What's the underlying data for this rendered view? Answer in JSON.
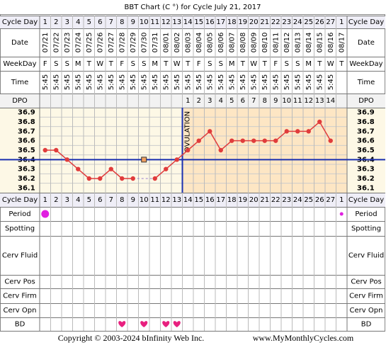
{
  "title": "BBT Chart (C °) for Cycle July 21, 2017",
  "row_labels": {
    "cycle_day": "Cycle Day",
    "date": "Date",
    "weekday": "WeekDay",
    "time": "Time",
    "dpo": "DPO",
    "period": "Period",
    "spotting": "Spotting",
    "cerv_fluid": "Cerv Fluid",
    "cerv_pos": "Cerv Pos",
    "cerv_firm": "Cerv Firm",
    "cerv_opn": "Cerv Opn",
    "bd": "BD"
  },
  "dates": [
    "07/21",
    "07/22",
    "07/23",
    "07/24",
    "07/25",
    "07/26",
    "07/27",
    "07/28",
    "07/29",
    "07/30",
    "07/31",
    "08/01",
    "08/02",
    "08/03",
    "08/04",
    "08/05",
    "08/06",
    "08/07",
    "08/08",
    "08/09",
    "08/10",
    "08/11",
    "08/12",
    "08/13",
    "08/14",
    "08/15",
    "08/16",
    "08/17"
  ],
  "weekdays": [
    "F",
    "S",
    "S",
    "M",
    "T",
    "W",
    "T",
    "F",
    "S",
    "S",
    "M",
    "T",
    "W",
    "T",
    "F",
    "S",
    "S",
    "M",
    "T",
    "W",
    "T",
    "F",
    "S",
    "S",
    "M",
    "T",
    "W",
    "T"
  ],
  "times": [
    "5:45",
    "5:45",
    "5:45",
    "5:45",
    "5:45",
    "5:45",
    "5:45",
    "5:45",
    "5:45",
    "5:45",
    "5:45",
    "5:45",
    "5:45",
    "5:45",
    "5:45",
    "5:45",
    "5:45",
    "5:45",
    "5:45",
    "5:45",
    "5:45",
    "5:45",
    "5:45",
    "5:45",
    "5:45",
    "5:45",
    "5:45",
    null
  ],
  "dpo": [
    null,
    null,
    null,
    null,
    null,
    null,
    null,
    null,
    null,
    null,
    null,
    null,
    null,
    1,
    2,
    3,
    4,
    5,
    6,
    7,
    8,
    9,
    10,
    11,
    12,
    13,
    14,
    null
  ],
  "period": [
    {
      "index": 0,
      "size": "large"
    },
    {
      "index": 27,
      "size": "small"
    }
  ],
  "bd_indices": [
    7,
    9,
    11,
    12
  ],
  "chart_data": {
    "type": "line",
    "categories": [
      1,
      2,
      3,
      4,
      5,
      6,
      7,
      8,
      9,
      10,
      11,
      12,
      13,
      14,
      15,
      16,
      17,
      18,
      19,
      20,
      21,
      22,
      23,
      24,
      25,
      26,
      27,
      1
    ],
    "series": [
      {
        "color": "#e03c3c",
        "values": [
          36.5,
          36.5,
          36.4,
          36.3,
          36.2,
          36.2,
          36.3,
          36.2,
          36.2,
          null,
          36.2,
          36.3,
          36.4,
          36.5,
          36.6,
          36.7,
          36.5,
          36.6,
          36.6,
          36.6,
          36.6,
          36.6,
          36.7,
          36.7,
          36.7,
          36.8,
          36.6,
          null
        ]
      },
      {
        "color": "#f0a060",
        "values": [
          null,
          null,
          null,
          null,
          null,
          null,
          null,
          null,
          null,
          36.4,
          null,
          null,
          null,
          null,
          null,
          null,
          null,
          null,
          null,
          null,
          null,
          null,
          null,
          null,
          null,
          null,
          null,
          null
        ]
      }
    ],
    "ylim": [
      36.05,
      36.95
    ],
    "yticks": [
      36.9,
      36.8,
      36.7,
      36.6,
      36.5,
      36.4,
      36.3,
      36.2,
      36.1
    ],
    "coverline": 36.4,
    "ovulation_after_index": 12,
    "ovulation_label": "OVULATION",
    "line_color": "#1a2fb0"
  },
  "footer": {
    "copyright": "Copyright © 2003-2024 bInfinity Web Inc.",
    "site": "www.MyMonthlyCycles.com"
  }
}
